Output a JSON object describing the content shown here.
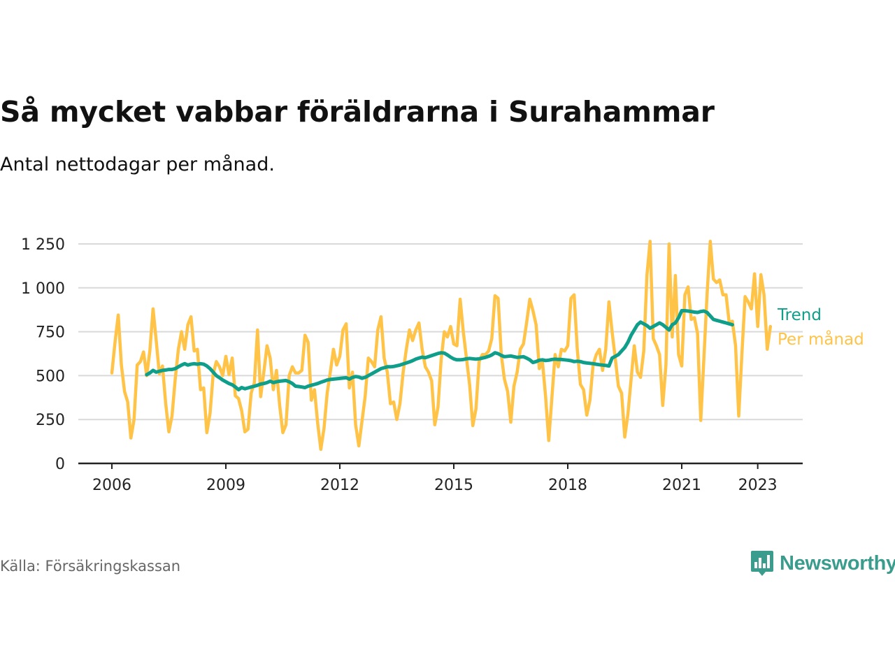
{
  "header": {
    "title": "Så mycket vabbar föräldrarna i Surahammar",
    "subtitle": "Antal nettodagar per månad."
  },
  "footer": {
    "source": "Källa: Försäkringskassan",
    "brand": "Newsworthy",
    "brand_icon": "newsworthy-logo-icon"
  },
  "colors": {
    "monthly": "#ffc347",
    "trend": "#0f9e8a",
    "grid": "#d9d9d9",
    "axis": "#222222"
  },
  "chart_data": {
    "type": "line",
    "title": "Så mycket vabbar föräldrarna i Surahammar",
    "subtitle": "Antal nettodagar per månad.",
    "xlabel": "",
    "ylabel": "",
    "x_ticks": [
      "2006",
      "2009",
      "2012",
      "2015",
      "2018",
      "2021",
      "2023"
    ],
    "x_tick_values": [
      2006,
      2009,
      2012,
      2015,
      2018,
      2021,
      2023
    ],
    "xlim": [
      2006,
      2023.4
    ],
    "y_ticks": [
      "0",
      "250",
      "500",
      "750",
      "1 000",
      "1 250"
    ],
    "y_tick_values": [
      0,
      250,
      500,
      750,
      1000,
      1250
    ],
    "ylim": [
      0,
      1250
    ],
    "grid": true,
    "legend": "direct labels at right end of lines",
    "series": [
      {
        "name": "Per månad",
        "label": "Per månad",
        "start": "2006-01",
        "values": [
          515,
          690,
          845,
          560,
          410,
          350,
          145,
          250,
          560,
          580,
          635,
          500,
          640,
          880,
          700,
          510,
          555,
          340,
          180,
          270,
          480,
          650,
          750,
          650,
          790,
          835,
          640,
          650,
          420,
          430,
          175,
          285,
          510,
          580,
          550,
          500,
          610,
          505,
          600,
          385,
          370,
          300,
          180,
          195,
          400,
          460,
          760,
          380,
          520,
          670,
          600,
          420,
          530,
          330,
          175,
          220,
          500,
          550,
          515,
          515,
          530,
          730,
          690,
          360,
          420,
          230,
          80,
          200,
          400,
          520,
          650,
          560,
          610,
          760,
          795,
          430,
          520,
          220,
          100,
          240,
          380,
          600,
          580,
          550,
          760,
          835,
          600,
          520,
          340,
          350,
          250,
          340,
          520,
          650,
          760,
          700,
          760,
          800,
          650,
          550,
          520,
          470,
          220,
          320,
          590,
          750,
          720,
          780,
          680,
          670,
          935,
          750,
          600,
          450,
          215,
          310,
          580,
          620,
          620,
          640,
          710,
          955,
          940,
          620,
          480,
          410,
          235,
          440,
          520,
          650,
          680,
          800,
          935,
          870,
          790,
          540,
          580,
          380,
          130,
          380,
          620,
          550,
          650,
          640,
          670,
          940,
          960,
          650,
          450,
          420,
          275,
          360,
          560,
          620,
          650,
          530,
          650,
          920,
          750,
          600,
          440,
          400,
          150,
          280,
          480,
          670,
          520,
          490,
          640,
          1070,
          1265,
          710,
          670,
          620,
          330,
          560,
          1250,
          720,
          1070,
          620,
          555,
          960,
          1005,
          820,
          830,
          740,
          245,
          600,
          960,
          1265,
          1050,
          1030,
          1045,
          960,
          960,
          800,
          810,
          670,
          270,
          620,
          950,
          920,
          880,
          1080,
          780,
          1075,
          960,
          650,
          780
        ]
      },
      {
        "name": "Trend",
        "label": "Trend",
        "start": "2006-12",
        "values": [
          505,
          515,
          530,
          520,
          525,
          530,
          532,
          535,
          535,
          540,
          550,
          560,
          568,
          560,
          565,
          568,
          565,
          568,
          565,
          555,
          540,
          520,
          500,
          488,
          475,
          465,
          455,
          448,
          435,
          420,
          432,
          425,
          430,
          435,
          440,
          445,
          452,
          455,
          460,
          468,
          460,
          465,
          468,
          470,
          472,
          465,
          455,
          440,
          438,
          435,
          432,
          440,
          445,
          450,
          455,
          462,
          468,
          475,
          478,
          480,
          482,
          484,
          486,
          488,
          480,
          490,
          495,
          492,
          485,
          490,
          500,
          510,
          520,
          530,
          540,
          545,
          550,
          550,
          552,
          556,
          560,
          566,
          572,
          578,
          585,
          594,
          600,
          605,
          602,
          608,
          614,
          620,
          626,
          630,
          628,
          618,
          605,
          595,
          590,
          590,
          592,
          596,
          598,
          596,
          594,
          596,
          600,
          604,
          610,
          618,
          630,
          625,
          615,
          608,
          610,
          612,
          608,
          604,
          606,
          608,
          600,
          590,
          575,
          580,
          588,
          590,
          586,
          588,
          592,
          594,
          592,
          592,
          590,
          588,
          585,
          580,
          582,
          580,
          575,
          572,
          570,
          568,
          565,
          562,
          560,
          558,
          555,
          600,
          610,
          620,
          640,
          660,
          690,
          730,
          760,
          790,
          805,
          795,
          785,
          770,
          780,
          790,
          800,
          790,
          775,
          760,
          790,
          800,
          830,
          870,
          870,
          868,
          865,
          862,
          860,
          865,
          868,
          860,
          840,
          820,
          815,
          810,
          805,
          800,
          795,
          790
        ]
      }
    ]
  }
}
